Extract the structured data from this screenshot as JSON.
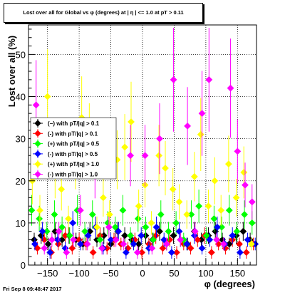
{
  "title": "Lost over all for Global vs φ (degrees) at | η | <= 1.0 at pT > 0.11",
  "footer": "Fri Sep  8 09:48:47 2017",
  "chart_data": {
    "type": "scatter",
    "title": "Lost over all for Global vs φ (degrees) at | η | <= 1.0 at pT > 0.11",
    "xlabel": "φ (degrees)",
    "ylabel": "Lost over all (%)",
    "xlim": [
      -180,
      180
    ],
    "ylim": [
      0,
      57
    ],
    "xticks": [
      -150,
      -100,
      -50,
      0,
      50,
      100,
      150
    ],
    "yticks": [
      0,
      10,
      20,
      30,
      40,
      50
    ],
    "grid": true,
    "legend_position": "left-middle",
    "series": [
      {
        "name": "(−) with pT/|q| > 0.1",
        "color": "#000000",
        "x": [
          -171,
          -160,
          -149,
          -138,
          -127,
          -116,
          -105,
          -94,
          -83,
          -72,
          -61,
          -50,
          -39,
          -28,
          -17,
          -6,
          5,
          16,
          27,
          38,
          49,
          60,
          71,
          82,
          93,
          104,
          115,
          126,
          137,
          148,
          159,
          170
        ],
        "y": [
          6,
          7,
          5,
          8,
          6,
          7,
          6,
          5,
          8,
          6,
          7,
          5,
          8,
          7,
          6,
          5,
          7,
          6,
          8,
          5,
          7,
          6,
          5,
          8,
          6,
          7,
          8,
          6,
          5,
          7,
          8,
          6
        ]
      },
      {
        "name": "(-) with pT/|q| > 0.1",
        "color": "#ff0000",
        "x": [
          -166,
          -155,
          -144,
          -133,
          -122,
          -111,
          -100,
          -89,
          -78,
          -67,
          -56,
          -45,
          -34,
          -23,
          -12,
          -1,
          10,
          21,
          32,
          43,
          54,
          65,
          76,
          87,
          98,
          109,
          120,
          131,
          142,
          153,
          164,
          175
        ],
        "y": [
          4,
          6,
          3,
          5,
          7,
          4,
          6,
          5,
          3,
          7,
          4,
          6,
          5,
          4,
          6,
          3,
          5,
          7,
          4,
          6,
          3,
          5,
          4,
          6,
          7,
          3,
          5,
          4,
          6,
          5,
          3,
          5
        ]
      },
      {
        "name": "(+) with pT/|q| > 0.5",
        "color": "#00ff00",
        "x": [
          -175,
          -163,
          -151,
          -139,
          -127,
          -115,
          -103,
          -91,
          -79,
          -67,
          -55,
          -43,
          -31,
          -19,
          -7,
          5,
          17,
          29,
          41,
          53,
          65,
          77,
          89,
          101,
          113,
          125,
          137,
          149,
          161,
          173
        ],
        "y": [
          13,
          11,
          8,
          12,
          9,
          7,
          13,
          8,
          12,
          6,
          10,
          9,
          13,
          7,
          11,
          9,
          6,
          12,
          8,
          10,
          6,
          12,
          14,
          7,
          11,
          9,
          13,
          8,
          12,
          10
        ]
      },
      {
        "name": "(-) with pT/|q| > 0.5",
        "color": "#0000ff",
        "x": [
          -170,
          -158,
          -146,
          -134,
          -122,
          -110,
          -98,
          -86,
          -74,
          -62,
          -50,
          -38,
          -26,
          -14,
          -2,
          10,
          22,
          34,
          46,
          58,
          70,
          82,
          94,
          106,
          118,
          130,
          142,
          154,
          166,
          178
        ],
        "y": [
          5,
          8,
          3,
          6,
          4,
          10,
          5,
          7,
          9,
          4,
          6,
          8,
          3,
          5,
          7,
          4,
          9,
          6,
          3,
          8,
          5,
          7,
          4,
          6,
          9,
          5,
          7,
          3,
          6,
          5
        ]
      },
      {
        "name": "(+) with pT/|q| > 1.0",
        "color": "#ffff00",
        "x": [
          -174,
          -162,
          -150,
          -138,
          -128,
          -117,
          -106,
          -96,
          -84,
          -72,
          -62,
          -52,
          -40,
          -28,
          -18,
          -6,
          4,
          14,
          26,
          36,
          48,
          58,
          70,
          82,
          92,
          104,
          114,
          124,
          136,
          148,
          160,
          172
        ],
        "y": [
          20,
          13,
          40,
          22,
          18,
          11,
          25,
          35,
          30,
          9,
          16,
          12,
          25,
          28,
          34,
          14,
          19,
          10,
          26,
          23,
          18,
          15,
          12,
          21,
          31,
          14,
          20,
          13,
          24,
          16,
          22,
          5
        ]
      },
      {
        "name": "(-) with pT/|q| > 1.0",
        "color": "#ff00ff",
        "x": [
          -168,
          -155,
          -143,
          -132,
          -120,
          -109,
          -98,
          -87,
          -75,
          -64,
          -53,
          -42,
          -30,
          -19,
          -8,
          4,
          15,
          27,
          38,
          49,
          60,
          71,
          83,
          94,
          105,
          117,
          128,
          139,
          150,
          162,
          173
        ],
        "y": [
          38,
          4,
          6,
          8,
          3,
          6,
          13,
          5,
          22,
          4,
          9,
          6,
          5,
          26,
          3,
          26,
          4,
          30,
          5,
          44,
          6,
          33,
          8,
          36,
          44,
          6,
          5,
          42,
          27,
          19,
          15
        ]
      }
    ]
  }
}
